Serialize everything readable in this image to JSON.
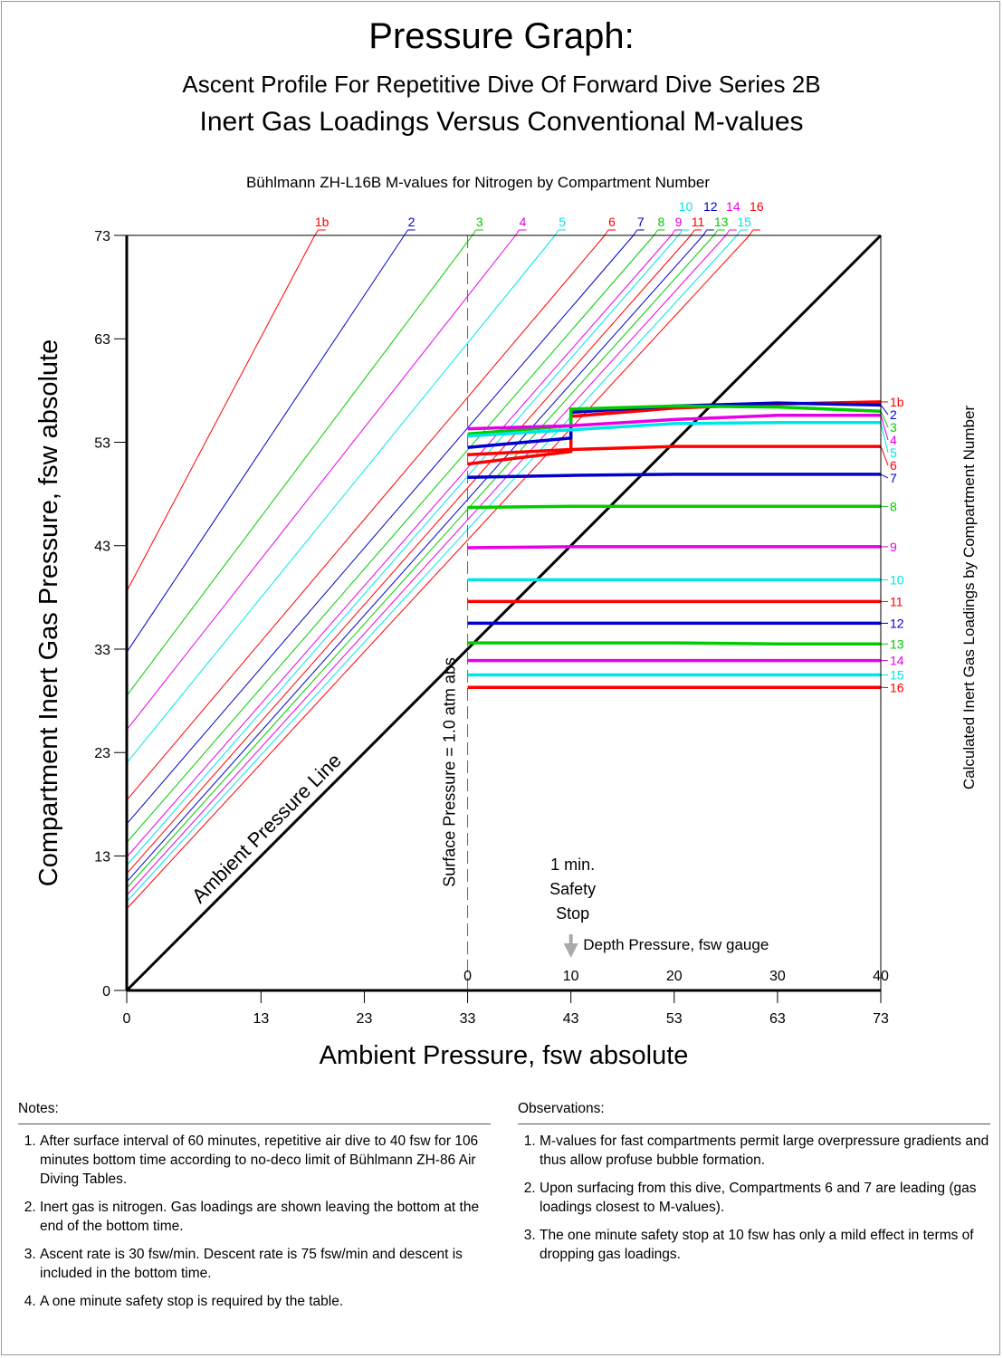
{
  "titles": {
    "main": "Pressure Graph:",
    "line2": "Ascent Profile For Repetitive Dive Of Forward Dive Series 2B",
    "line3": "Inert Gas Loadings Versus Conventional M-values"
  },
  "colors": {
    "red": "#ff0000",
    "blue": "#0000cc",
    "green": "#00cc00",
    "magenta": "#e600e6",
    "cyan": "#00e6e6"
  },
  "chart_data": {
    "type": "line",
    "top_label": "Bühlmann ZH-L16B M-values for Nitrogen by Compartment Number",
    "xlabel": "Ambient Pressure, fsw absolute",
    "ylabel": "Compartment Inert Gas Pressure, fsw absolute",
    "right_label": "Calculated Inert Gas Loadings by Compartment Number",
    "secondary_xlabel": "Depth Pressure, fsw gauge",
    "xlim": [
      0,
      73
    ],
    "ylim": [
      0,
      73
    ],
    "x_ticks": [
      "0",
      "13",
      "23",
      "33",
      "43",
      "53",
      "63",
      "73"
    ],
    "x_tick_values": [
      0,
      13,
      23,
      33,
      43,
      53,
      63,
      73
    ],
    "y_ticks": [
      "0",
      "13",
      "23",
      "33",
      "43",
      "53",
      "63",
      "73"
    ],
    "y_tick_values": [
      0,
      13,
      23,
      33,
      43,
      53,
      63,
      73
    ],
    "depth_ticks": [
      "0",
      "10",
      "20",
      "30",
      "40"
    ],
    "depth_tick_values": [
      0,
      10,
      20,
      30,
      40
    ],
    "surface_pressure_label": "Surface Pressure = 1.0 atm abs",
    "surface_pressure_value": 33,
    "ambient_line_label": "Ambient Pressure Line",
    "safety_stop_label": [
      "1 min.",
      "Safety",
      "Stop"
    ],
    "safety_stop_depth": 10,
    "mvalues": [
      {
        "name": "1b",
        "color": "red",
        "intercept": 38.6,
        "slope": 1.89
      },
      {
        "name": "2",
        "color": "blue",
        "intercept": 32.7,
        "slope": 1.5
      },
      {
        "name": "3",
        "color": "green",
        "intercept": 28.5,
        "slope": 1.33
      },
      {
        "name": "4",
        "color": "magenta",
        "intercept": 25.2,
        "slope": 1.27
      },
      {
        "name": "5",
        "color": "cyan",
        "intercept": 22.0,
        "slope": 1.23
      },
      {
        "name": "6",
        "color": "red",
        "intercept": 18.4,
        "slope": 1.18
      },
      {
        "name": "7",
        "color": "blue",
        "intercept": 16.1,
        "slope": 1.16
      },
      {
        "name": "8",
        "color": "green",
        "intercept": 14.3,
        "slope": 1.15
      },
      {
        "name": "9",
        "color": "magenta",
        "intercept": 12.9,
        "slope": 1.14
      },
      {
        "name": "10",
        "color": "cyan",
        "intercept": 12.1,
        "slope": 1.14
      },
      {
        "name": "11",
        "color": "red",
        "intercept": 11.3,
        "slope": 1.13
      },
      {
        "name": "12",
        "color": "blue",
        "intercept": 10.5,
        "slope": 1.12
      },
      {
        "name": "13",
        "color": "green",
        "intercept": 9.9,
        "slope": 1.11
      },
      {
        "name": "14",
        "color": "magenta",
        "intercept": 9.2,
        "slope": 1.1
      },
      {
        "name": "15",
        "color": "cyan",
        "intercept": 8.6,
        "slope": 1.09
      },
      {
        "name": "16",
        "color": "red",
        "intercept": 7.9,
        "slope": 1.08
      }
    ],
    "loadings": [
      {
        "name": "1b",
        "color": "red",
        "points": [
          [
            33,
            50.9
          ],
          [
            43,
            52.1
          ],
          [
            43,
            55.5
          ],
          [
            53,
            56.3
          ],
          [
            63,
            56.7
          ],
          [
            73,
            56.9
          ]
        ]
      },
      {
        "name": "2",
        "color": "blue",
        "points": [
          [
            33,
            52.5
          ],
          [
            43,
            53.4
          ],
          [
            43,
            55.9
          ],
          [
            53,
            56.5
          ],
          [
            63,
            56.8
          ],
          [
            73,
            56.6
          ]
        ]
      },
      {
        "name": "3",
        "color": "green",
        "points": [
          [
            33,
            53.8
          ],
          [
            43,
            54.6
          ],
          [
            43,
            56.2
          ],
          [
            53,
            56.5
          ],
          [
            63,
            56.4
          ],
          [
            73,
            56.0
          ]
        ]
      },
      {
        "name": "4",
        "color": "magenta",
        "points": [
          [
            33,
            54.3
          ],
          [
            43,
            54.6
          ],
          [
            53,
            55.2
          ],
          [
            63,
            55.6
          ],
          [
            73,
            55.6
          ]
        ]
      },
      {
        "name": "5",
        "color": "cyan",
        "points": [
          [
            33,
            53.6
          ],
          [
            43,
            54.2
          ],
          [
            53,
            54.8
          ],
          [
            63,
            54.9
          ],
          [
            73,
            54.9
          ]
        ]
      },
      {
        "name": "6",
        "color": "red",
        "points": [
          [
            33,
            51.8
          ],
          [
            43,
            52.3
          ],
          [
            53,
            52.6
          ],
          [
            63,
            52.6
          ],
          [
            73,
            52.6
          ]
        ]
      },
      {
        "name": "7",
        "color": "blue",
        "points": [
          [
            33,
            49.6
          ],
          [
            43,
            49.8
          ],
          [
            53,
            49.9
          ],
          [
            63,
            49.9
          ],
          [
            73,
            49.9
          ]
        ]
      },
      {
        "name": "8",
        "color": "green",
        "points": [
          [
            33,
            46.7
          ],
          [
            43,
            46.8
          ],
          [
            53,
            46.8
          ],
          [
            63,
            46.8
          ],
          [
            73,
            46.8
          ]
        ]
      },
      {
        "name": "9",
        "color": "magenta",
        "points": [
          [
            33,
            42.8
          ],
          [
            43,
            42.9
          ],
          [
            53,
            42.9
          ],
          [
            63,
            42.9
          ],
          [
            73,
            42.9
          ]
        ]
      },
      {
        "name": "10",
        "color": "cyan",
        "points": [
          [
            33,
            39.7
          ],
          [
            43,
            39.7
          ],
          [
            53,
            39.7
          ],
          [
            63,
            39.7
          ],
          [
            73,
            39.7
          ]
        ]
      },
      {
        "name": "11",
        "color": "red",
        "points": [
          [
            33,
            37.6
          ],
          [
            43,
            37.6
          ],
          [
            53,
            37.6
          ],
          [
            63,
            37.6
          ],
          [
            73,
            37.6
          ]
        ]
      },
      {
        "name": "12",
        "color": "blue",
        "points": [
          [
            33,
            35.5
          ],
          [
            43,
            35.5
          ],
          [
            53,
            35.5
          ],
          [
            63,
            35.5
          ],
          [
            73,
            35.5
          ]
        ]
      },
      {
        "name": "13",
        "color": "green",
        "points": [
          [
            33,
            33.6
          ],
          [
            43,
            33.6
          ],
          [
            53,
            33.6
          ],
          [
            63,
            33.5
          ],
          [
            73,
            33.5
          ]
        ]
      },
      {
        "name": "14",
        "color": "magenta",
        "points": [
          [
            33,
            31.9
          ],
          [
            43,
            31.9
          ],
          [
            53,
            31.9
          ],
          [
            63,
            31.9
          ],
          [
            73,
            31.9
          ]
        ]
      },
      {
        "name": "15",
        "color": "cyan",
        "points": [
          [
            33,
            30.5
          ],
          [
            43,
            30.5
          ],
          [
            53,
            30.5
          ],
          [
            63,
            30.5
          ],
          [
            73,
            30.5
          ]
        ]
      },
      {
        "name": "16",
        "color": "red",
        "points": [
          [
            33,
            29.3
          ],
          [
            43,
            29.3
          ],
          [
            53,
            29.3
          ],
          [
            63,
            29.3
          ],
          [
            73,
            29.3
          ]
        ]
      }
    ]
  },
  "notes": {
    "header": "Notes:",
    "items": [
      "After surface interval of 60 minutes, repetitive air dive to 40 fsw for 106 minutes bottom time according to no-deco limit of Bühlmann ZH-86 Air Diving Tables.",
      "Inert gas is nitrogen.  Gas loadings are shown leaving the bottom at the end of the bottom time.",
      "Ascent rate is 30 fsw/min.  Descent rate is 75 fsw/min and descent is included in the bottom time.",
      "A one minute safety stop is required by the table."
    ]
  },
  "observations": {
    "header": "Observations:",
    "items": [
      "M-values for fast compartments permit large overpressure gradients and thus allow profuse bubble formation.",
      "Upon surfacing from this dive, Compartments 6 and 7 are leading (gas loadings closest to M-values).",
      "The one minute safety stop at 10 fsw has only a mild effect in terms of dropping gas loadings."
    ]
  }
}
